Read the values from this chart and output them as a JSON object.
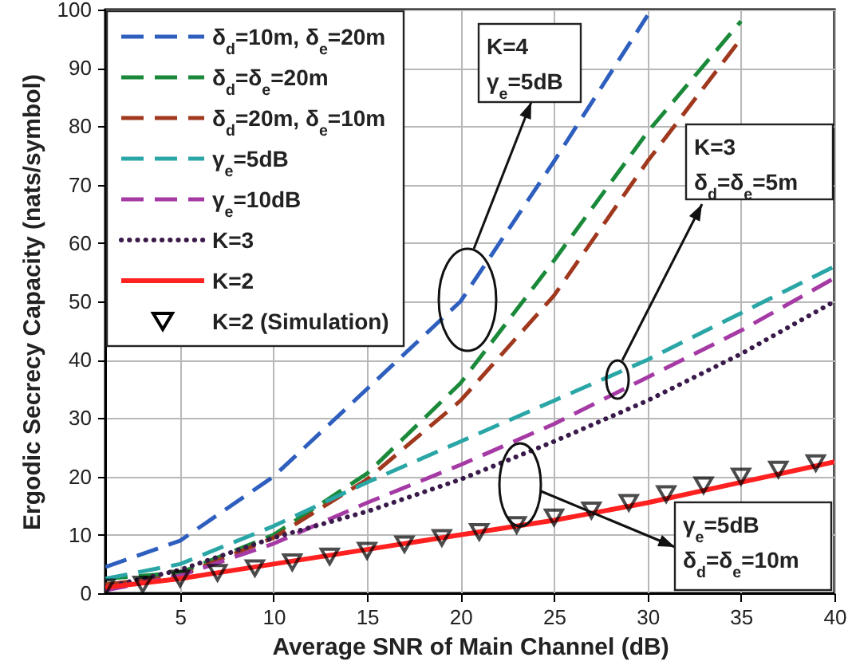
{
  "chart_data": {
    "type": "line",
    "xlabel": "Average SNR of Main Channel (dB)",
    "ylabel": "Ergodic Secrecy Capacity (nats/symbol)",
    "x": [
      1,
      5,
      10,
      15,
      20,
      25,
      30,
      35,
      40
    ],
    "xlim": [
      1,
      40
    ],
    "xticks": [
      5,
      10,
      15,
      20,
      25,
      30,
      35,
      40
    ],
    "ylim": [
      0,
      100
    ],
    "yticks": [
      0,
      10,
      20,
      30,
      40,
      50,
      60,
      70,
      80,
      90,
      100
    ],
    "grid": true,
    "legend": "top left",
    "series": [
      {
        "name": "δ$_{d}$=10m, δ$_{e}$=20m",
        "color": "#2e5fbf",
        "line_style": "dashed",
        "values": [
          4.5,
          9,
          20,
          35,
          50,
          74,
          99,
          null,
          null
        ]
      },
      {
        "name": "δ$_{d}$=δ$_{e}$=20m",
        "color": "#1a8a3a",
        "line_style": "dashed",
        "values": [
          2.5,
          3.5,
          10,
          20.5,
          36,
          57,
          79,
          98,
          null
        ]
      },
      {
        "name": "δ$_{d}$=20m, δ$_{e}$=10m",
        "color": "#a0381e",
        "line_style": "dashed",
        "values": [
          1.5,
          3,
          9.5,
          19.5,
          33,
          51,
          74,
          95,
          null
        ]
      },
      {
        "name": "γ$_{e}$=5dB",
        "color": "#2aa6a6",
        "line_style": "dashed",
        "values": [
          2.5,
          5,
          11.5,
          19,
          26,
          33,
          40,
          48,
          56
        ]
      },
      {
        "name": "γ$_{e}$=10dB",
        "color": "#a53aa5",
        "line_style": "dashed",
        "values": [
          0.5,
          3,
          8.5,
          15.5,
          22,
          29,
          37,
          45,
          54
        ]
      },
      {
        "name": "K=3",
        "color": "#3a1a4a",
        "line_style": "dotted",
        "values": [
          1,
          4,
          9.5,
          14,
          19.5,
          26,
          33,
          41,
          50
        ]
      },
      {
        "name": "K=2",
        "color": "#ff2020",
        "line_style": "solid",
        "values": [
          1,
          2.5,
          5,
          7.5,
          10,
          12.5,
          15.5,
          19,
          22.5
        ]
      },
      {
        "name": "K=2 (Simulation)",
        "type": "scatter",
        "marker": "triangle",
        "color": "#000000",
        "x": [
          1,
          3,
          5,
          7,
          9,
          11,
          13,
          15,
          17,
          19,
          21,
          23,
          25,
          27,
          29,
          31,
          33,
          35,
          37,
          39
        ],
        "values": [
          1,
          1.5,
          2.5,
          3.5,
          4.3,
          5.3,
          6.3,
          7.3,
          8.4,
          9.5,
          10.5,
          11.7,
          13,
          14.2,
          15.5,
          17,
          18.5,
          20,
          21.2,
          22.3
        ]
      }
    ],
    "annotations": [
      "K=4\nγ$_{e}$=5dB",
      "K=3\nδ$_{d}$=δ$_{e}$=5m",
      "γ$_{e}$=5dB\nδ$_{d}$=δ$_{e}$=10m"
    ]
  }
}
